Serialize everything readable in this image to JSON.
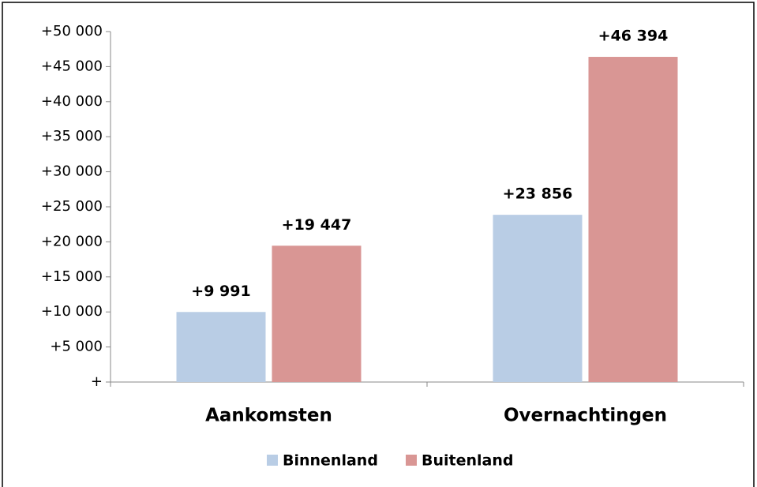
{
  "chart_data": {
    "type": "bar",
    "categories": [
      "Aankomsten",
      "Overnachtingen"
    ],
    "series": [
      {
        "name": "Binnenland",
        "color": "#b9cde5",
        "values": [
          9991,
          23856
        ],
        "value_labels": [
          "+9 991",
          "+23 856"
        ]
      },
      {
        "name": "Buitenland",
        "color": "#d99694",
        "values": [
          19447,
          46394
        ],
        "value_labels": [
          "+19 447",
          "+46 394"
        ]
      }
    ],
    "ylim": [
      0,
      50000
    ],
    "yticks": [
      {
        "value": 0,
        "label": "+"
      },
      {
        "value": 5000,
        "label": "+5 000"
      },
      {
        "value": 10000,
        "label": "+10 000"
      },
      {
        "value": 15000,
        "label": "+15 000"
      },
      {
        "value": 20000,
        "label": "+20 000"
      },
      {
        "value": 25000,
        "label": "+25 000"
      },
      {
        "value": 30000,
        "label": "+30 000"
      },
      {
        "value": 35000,
        "label": "+35 000"
      },
      {
        "value": 40000,
        "label": "+40 000"
      },
      {
        "value": 45000,
        "label": "+45 000"
      },
      {
        "value": 50000,
        "label": "+50 000"
      }
    ],
    "legend": "bottom"
  }
}
